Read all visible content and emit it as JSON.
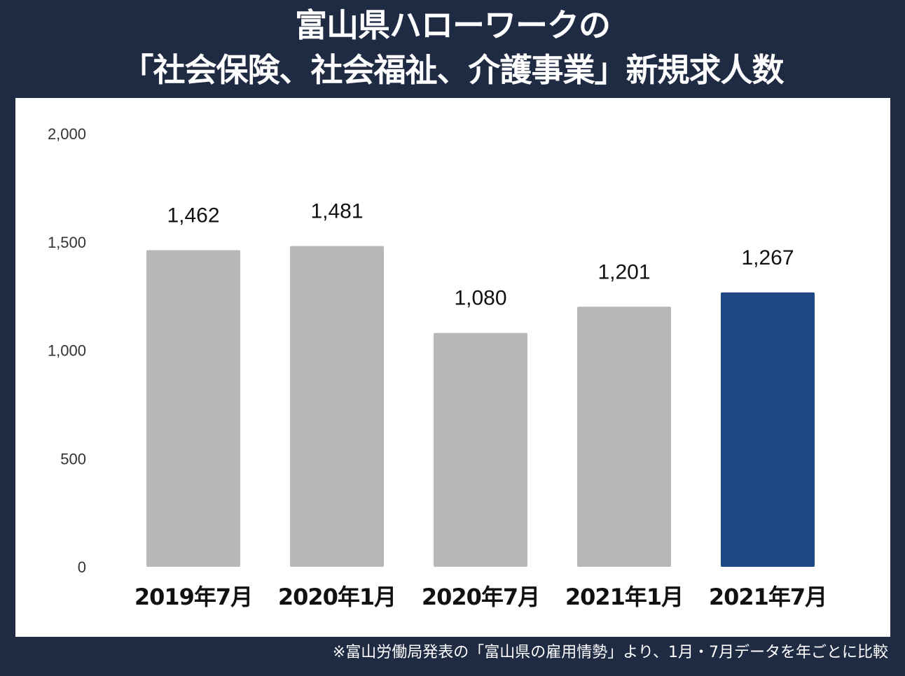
{
  "title_line1": "富山県ハローワークの",
  "title_line2": "「社会保険、社会福祉、介護事業」新規求人数",
  "footnote": "※富山労働局発表の「富山県の雇用情勢」より、1月・7月データを年ごとに比較",
  "colors": {
    "background": "#1f2a43",
    "bar": "#b7b7b7",
    "highlight": "#1f4786",
    "panel": "#ffffff"
  },
  "chart_data": {
    "type": "bar",
    "title": "富山県ハローワークの「社会保険、社会福祉、介護事業」新規求人数",
    "categories": [
      "2019年7月",
      "2020年1月",
      "2020年7月",
      "2021年1月",
      "2021年7月"
    ],
    "values": [
      1462,
      1481,
      1080,
      1201,
      1267
    ],
    "value_labels": [
      "1,462",
      "1,481",
      "1,080",
      "1,201",
      "1,267"
    ],
    "highlight_index": 4,
    "ylim": [
      0,
      2000
    ],
    "yticks": [
      0,
      500,
      1000,
      1500,
      2000
    ],
    "ytick_labels": [
      "0",
      "500",
      "1,000",
      "1,500",
      "2,000"
    ],
    "xlabel": "",
    "ylabel": "",
    "grid": false,
    "legend": "none"
  }
}
